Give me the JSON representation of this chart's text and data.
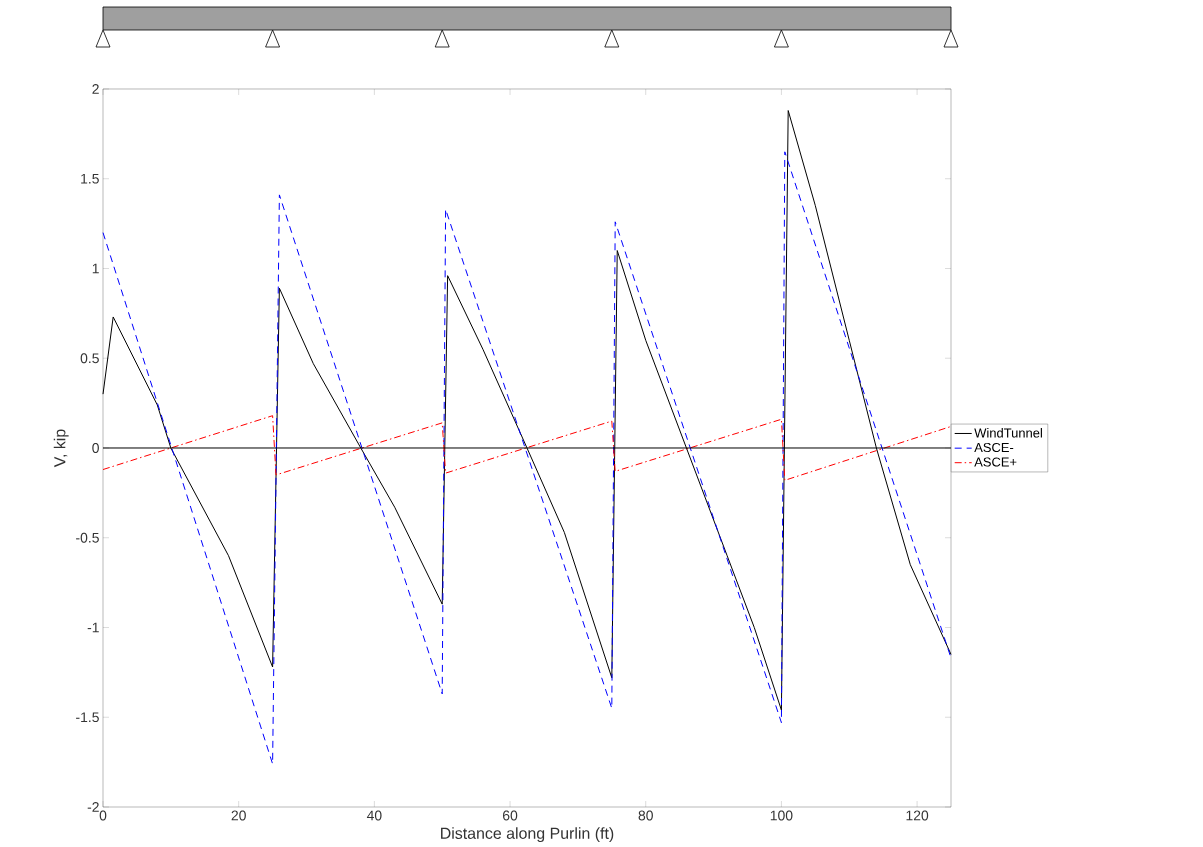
{
  "chart_data": {
    "type": "line",
    "xlabel": "Distance along Purlin (ft)",
    "ylabel": "V, kip",
    "xlim": [
      0,
      125
    ],
    "ylim": [
      -2,
      2
    ],
    "xticks": [
      0,
      20,
      40,
      60,
      80,
      100,
      120
    ],
    "yticks": [
      -2,
      -1.5,
      -1,
      -0.5,
      0,
      0.5,
      1,
      1.5,
      2
    ],
    "legend": "right",
    "grid": false,
    "marker": "none",
    "ref_lines": [
      {
        "axis": "y",
        "value": 0,
        "color": "#000000",
        "line_style": "solid"
      }
    ],
    "series": [
      {
        "name": "WindTunnel",
        "color": "#000000",
        "line_style": "solid",
        "x": [
          0,
          1.5,
          8,
          10,
          18.5,
          25,
          26,
          31,
          38,
          43,
          50,
          50.8,
          56,
          62.5,
          68,
          75,
          75.8,
          80,
          86,
          92,
          96,
          100,
          101,
          105,
          110,
          114,
          119,
          125
        ],
        "values": [
          0.3,
          0.73,
          0.24,
          0,
          -0.6,
          -1.22,
          0.89,
          0.47,
          0,
          -0.33,
          -0.87,
          0.96,
          0.55,
          0,
          -0.47,
          -1.28,
          1.1,
          0.6,
          0,
          -0.6,
          -1.0,
          -1.46,
          1.88,
          1.35,
          0.6,
          0,
          -0.65,
          -1.15
        ]
      },
      {
        "name": "ASCE-",
        "color": "#0000ff",
        "line_style": "dashed",
        "x": [
          0,
          25,
          26,
          50,
          50.5,
          75,
          75.5,
          100,
          100.5,
          125
        ],
        "values": [
          1.2,
          -1.76,
          1.41,
          -1.37,
          1.33,
          -1.45,
          1.26,
          -1.53,
          1.65,
          -1.17
        ]
      },
      {
        "name": "ASCE+",
        "color": "#ff0000",
        "line_style": "dashdot",
        "x": [
          0,
          25,
          25.5,
          50,
          50.5,
          75,
          75.5,
          100,
          100.5,
          125
        ],
        "values": [
          -0.12,
          0.18,
          -0.15,
          0.14,
          -0.14,
          0.15,
          -0.13,
          0.16,
          -0.18,
          0.12
        ]
      }
    ]
  }
}
